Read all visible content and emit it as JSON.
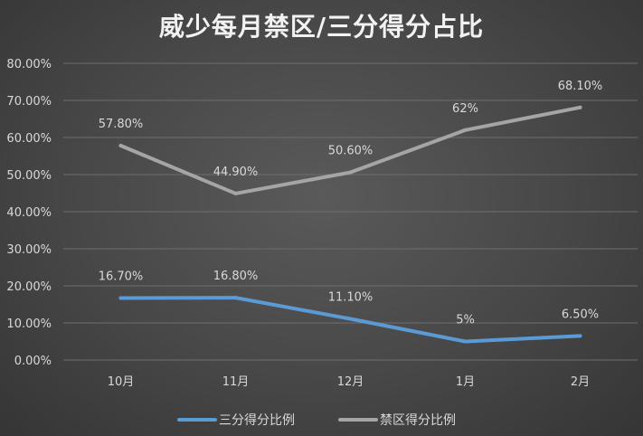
{
  "chart_data": {
    "type": "line",
    "title": "威少每月禁区/三分得分占比",
    "categories": [
      "10月",
      "11月",
      "12月",
      "1月",
      "2月"
    ],
    "ylim": [
      0,
      0.8
    ],
    "y_ticks": [
      "0.00%",
      "10.00%",
      "20.00%",
      "30.00%",
      "40.00%",
      "50.00%",
      "60.00%",
      "70.00%",
      "80.00%"
    ],
    "grid": true,
    "legend_position": "bottom",
    "series": [
      {
        "name": "三分得分比例",
        "values": [
          0.167,
          0.168,
          0.111,
          0.05,
          0.065
        ],
        "labels": [
          "16.70%",
          "16.80%",
          "11.10%",
          "5%",
          "6.50%"
        ],
        "color": "#5b9bd5"
      },
      {
        "name": "禁区得分比例",
        "values": [
          0.578,
          0.449,
          0.506,
          0.62,
          0.681
        ],
        "labels": [
          "57.80%",
          "44.90%",
          "50.60%",
          "62%",
          "68.10%"
        ],
        "color": "#a5a5a5"
      }
    ]
  }
}
